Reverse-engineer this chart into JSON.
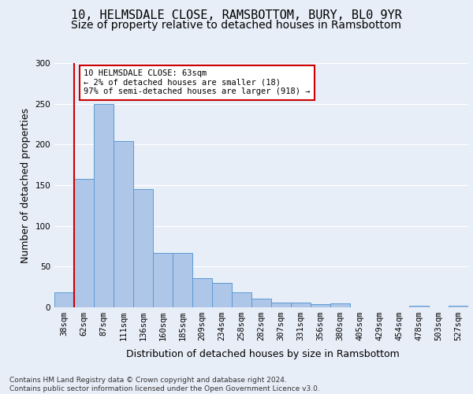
{
  "title_line1": "10, HELMSDALE CLOSE, RAMSBOTTOM, BURY, BL0 9YR",
  "title_line2": "Size of property relative to detached houses in Ramsbottom",
  "xlabel": "Distribution of detached houses by size in Ramsbottom",
  "ylabel": "Number of detached properties",
  "categories": [
    "38sqm",
    "62sqm",
    "87sqm",
    "111sqm",
    "136sqm",
    "160sqm",
    "185sqm",
    "209sqm",
    "234sqm",
    "258sqm",
    "282sqm",
    "307sqm",
    "331sqm",
    "356sqm",
    "380sqm",
    "405sqm",
    "429sqm",
    "454sqm",
    "478sqm",
    "503sqm",
    "527sqm"
  ],
  "values": [
    18,
    158,
    250,
    204,
    145,
    67,
    67,
    36,
    30,
    18,
    11,
    6,
    6,
    4,
    5,
    0,
    0,
    0,
    2,
    0,
    2
  ],
  "bar_color": "#aec6e8",
  "bar_edge_color": "#5b9bd5",
  "vline_x": 0.5,
  "vline_color": "#cc0000",
  "annotation_text": "10 HELMSDALE CLOSE: 63sqm\n← 2% of detached houses are smaller (18)\n97% of semi-detached houses are larger (918) →",
  "annotation_box_color": "#ffffff",
  "annotation_box_edge": "#cc0000",
  "ylim": [
    0,
    300
  ],
  "yticks": [
    0,
    50,
    100,
    150,
    200,
    250,
    300
  ],
  "footer": "Contains HM Land Registry data © Crown copyright and database right 2024.\nContains public sector information licensed under the Open Government Licence v3.0.",
  "background_color": "#e8eef8",
  "axes_background": "#e8eef8",
  "grid_color": "#ffffff",
  "title_fontsize": 11,
  "subtitle_fontsize": 10,
  "label_fontsize": 9,
  "tick_fontsize": 7.5,
  "footer_fontsize": 6.5
}
